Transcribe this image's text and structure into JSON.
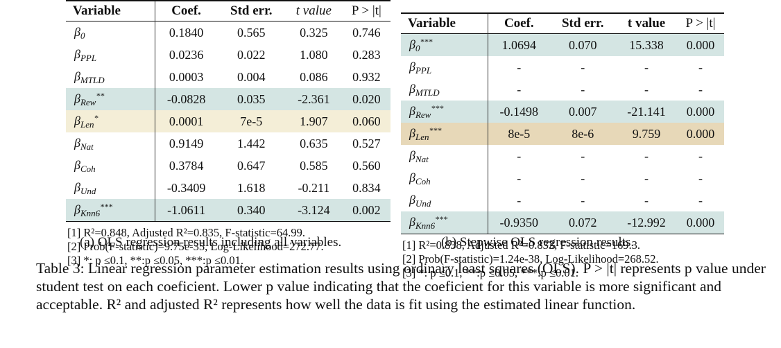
{
  "headers": [
    "Variable",
    "Coef.",
    "Std err.",
    "t value",
    "P > |t|"
  ],
  "panel_a": {
    "rows": [
      {
        "sym": "β",
        "sub": "0",
        "sup": "",
        "coef": "0.1840",
        "std": "0.565",
        "t": "0.325",
        "p": "0.746",
        "hl": ""
      },
      {
        "sym": "β",
        "sub": "PPL",
        "sup": "",
        "coef": "0.0236",
        "std": "0.022",
        "t": "1.080",
        "p": "0.283",
        "hl": ""
      },
      {
        "sym": "β",
        "sub": "MTLD",
        "sup": "",
        "coef": "0.0003",
        "std": "0.004",
        "t": "0.086",
        "p": "0.932",
        "hl": ""
      },
      {
        "sym": "β",
        "sub": "Rew",
        "sup": "**",
        "coef": "-0.0828",
        "std": "0.035",
        "t": "-2.361",
        "p": "0.020",
        "hl": "teal"
      },
      {
        "sym": "β",
        "sub": "Len",
        "sup": "*",
        "coef": "0.0001",
        "std": "7e-5",
        "t": "1.907",
        "p": "0.060",
        "hl": "cream"
      },
      {
        "sym": "β",
        "sub": "Nat",
        "sup": "",
        "coef": "0.9149",
        "std": "1.442",
        "t": "0.635",
        "p": "0.527",
        "hl": ""
      },
      {
        "sym": "β",
        "sub": "Coh",
        "sup": "",
        "coef": "0.3784",
        "std": "0.647",
        "t": "0.585",
        "p": "0.560",
        "hl": ""
      },
      {
        "sym": "β",
        "sub": "Und",
        "sup": "",
        "coef": "-0.3409",
        "std": "1.618",
        "t": "-0.211",
        "p": "0.834",
        "hl": ""
      },
      {
        "sym": "β",
        "sub": "Knn6",
        "sup": "***",
        "coef": "-1.0611",
        "std": "0.340",
        "t": "-3.124",
        "p": "0.002",
        "hl": "teal"
      }
    ],
    "notes": [
      "[1] R²=0.848, Adjusted R²=0.835, F-statistic=64.99.",
      "[2] Prob(F-statistic)=9.75e-35, Log-Likelihood=272.77.",
      "[3] *: p ≤0.1, **:p ≤0.05, ***:p ≤0.01."
    ],
    "caption": "(a) OLS regression results including all variables."
  },
  "panel_b": {
    "rows": [
      {
        "sym": "β",
        "sub": "0",
        "sup": "***",
        "coef": "1.0694",
        "std": "0.070",
        "t": "15.338",
        "p": "0.000",
        "hl": "teal"
      },
      {
        "sym": "β",
        "sub": "PPL",
        "sup": "",
        "coef": "-",
        "std": "-",
        "t": "-",
        "p": "-",
        "hl": ""
      },
      {
        "sym": "β",
        "sub": "MTLD",
        "sup": "",
        "coef": "-",
        "std": "-",
        "t": "-",
        "p": "-",
        "hl": ""
      },
      {
        "sym": "β",
        "sub": "Rew",
        "sup": "***",
        "coef": "-0.1498",
        "std": "0.007",
        "t": "-21.141",
        "p": "0.000",
        "hl": "teal"
      },
      {
        "sym": "β",
        "sub": "Len",
        "sup": "***",
        "coef": "8e-5",
        "std": "8e-6",
        "t": "9.759",
        "p": "0.000",
        "hl": "tan"
      },
      {
        "sym": "β",
        "sub": "Nat",
        "sup": "",
        "coef": "-",
        "std": "-",
        "t": "-",
        "p": "-",
        "hl": ""
      },
      {
        "sym": "β",
        "sub": "Coh",
        "sup": "",
        "coef": "-",
        "std": "-",
        "t": "-",
        "p": "-",
        "hl": ""
      },
      {
        "sym": "β",
        "sub": "Und",
        "sup": "",
        "coef": "-",
        "std": "-",
        "t": "-",
        "p": "-",
        "hl": ""
      },
      {
        "sym": "β",
        "sub": "Knn6",
        "sup": "***",
        "coef": "-0.9350",
        "std": "0.072",
        "t": "-12.992",
        "p": "0.000",
        "hl": "teal"
      }
    ],
    "notes": [
      "[1] R²=0.838, Adjusted R²=0.833, F-statistic=169.3.",
      "[2] Prob(F-statistic)=1.24e-38, Log-Likelihood=268.52.",
      "[3] *: p ≤0.1, **:p ≤0.05, ***:p ≤0.01."
    ],
    "caption": "(b) Stepwise OLS regression results."
  },
  "table_caption": "Table 3: Linear regression parameter estimation results using ordinary least squares (OLS). P > |t| represents p value under student test on each coeficient. Lower p value indicating that the coeficient for this variable is more significant and acceptable. R² and adjusted R² represents how well the data is fit using the estimated linear function.",
  "highlight_colors": {
    "teal": "#d4e5e3",
    "cream": "#f4eed7",
    "tan": "#e7d8b8"
  }
}
